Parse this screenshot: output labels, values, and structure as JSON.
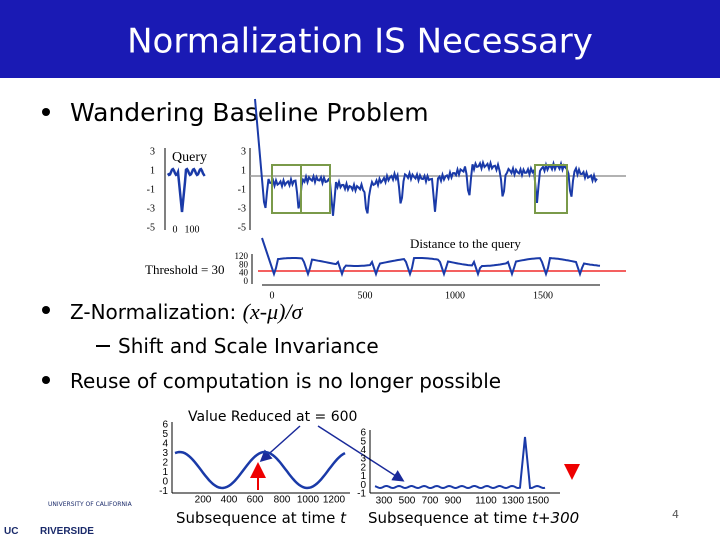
{
  "header": {
    "title": "Normalization IS Necessary"
  },
  "bullets": [
    {
      "text": "Wandering Baseline Problem"
    },
    {
      "text": "Z-Normalization: ",
      "formula": "(x-μ)/σ",
      "sub": [
        "Shift and Scale Invariance"
      ]
    },
    {
      "text": "Reuse of computation is no longer possible"
    }
  ],
  "figure1": {
    "query_label": "Query",
    "query_yticks": [
      "3",
      "1",
      "-1",
      "-3",
      "-5"
    ],
    "query_xticks": [
      "0",
      "100"
    ],
    "series_yticks": [
      "3",
      "1",
      "-1",
      "-3",
      "-5"
    ],
    "distance_label": "Distance to the query",
    "threshold_label": "Threshold = 30",
    "distance_yticks": [
      "120",
      "80",
      "40",
      "0"
    ],
    "distance_xticks": [
      "0",
      "500",
      "1000",
      "1500"
    ]
  },
  "figure2": {
    "annotation": "Value Reduced  at = 600",
    "left_yticks": [
      "6",
      "5",
      "4",
      "3",
      "2",
      "1",
      "0",
      "-1"
    ],
    "left_xticks": [
      "200",
      "400",
      "600",
      "800",
      "1000",
      "1200"
    ],
    "left_caption": "Subsequence at time ",
    "left_caption_var": "t",
    "right_yticks": [
      "6",
      "5",
      "4",
      "3",
      "2",
      "1",
      "0",
      "-1"
    ],
    "right_xticks": [
      "300",
      "500",
      "700",
      "900",
      "1100",
      "1300",
      "1500"
    ],
    "right_caption": "Subsequence at time ",
    "right_caption_var": "t+300"
  },
  "footer": {
    "logo_small": "UNIVERSITY OF CALIFORNIA",
    "logo_uc": "UC",
    "logo_name": "RIVERSIDE",
    "page_number": "4"
  }
}
